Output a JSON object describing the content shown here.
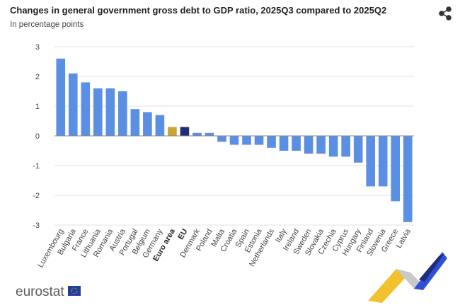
{
  "chart_data": {
    "type": "bar",
    "title": "Changes in general government gross debt to GDP ratio, 2025Q3 compared to 2025Q2",
    "subtitle": "In percentage points",
    "categories": [
      "Luxembourg",
      "Bulgaria",
      "France",
      "Lithuania",
      "Romania",
      "Austria",
      "Portugal",
      "Belgium",
      "Germany",
      "Euro area",
      "EU",
      "Denmark",
      "Poland",
      "Malta",
      "Croatia",
      "Spain",
      "Estonia",
      "Netherlands",
      "Italy",
      "Ireland",
      "Sweden",
      "Slovakia",
      "Czechia",
      "Cyprus",
      "Hungary",
      "Finland",
      "Slovenia",
      "Greece",
      "Latvia"
    ],
    "values": [
      2.6,
      2.1,
      1.8,
      1.6,
      1.6,
      1.5,
      0.9,
      0.8,
      0.7,
      0.3,
      0.3,
      0.1,
      0.1,
      -0.2,
      -0.3,
      -0.3,
      -0.3,
      -0.4,
      -0.5,
      -0.5,
      -0.6,
      -0.6,
      -0.7,
      -0.7,
      -0.9,
      -1.7,
      -1.7,
      -2.2,
      -2.9
    ],
    "color": "#5b8fe3",
    "colors": [
      "#5b8fe3",
      "#5b8fe3",
      "#5b8fe3",
      "#5b8fe3",
      "#5b8fe3",
      "#5b8fe3",
      "#5b8fe3",
      "#5b8fe3",
      "#5b8fe3",
      "#c9a532",
      "#1e2d78",
      "#5b8fe3",
      "#5b8fe3",
      "#5b8fe3",
      "#5b8fe3",
      "#5b8fe3",
      "#5b8fe3",
      "#5b8fe3",
      "#5b8fe3",
      "#5b8fe3",
      "#5b8fe3",
      "#5b8fe3",
      "#5b8fe3",
      "#5b8fe3",
      "#5b8fe3",
      "#5b8fe3",
      "#5b8fe3",
      "#5b8fe3",
      "#5b8fe3"
    ],
    "ylim": [
      -3,
      3
    ],
    "yticks": [
      -3,
      -2,
      -1,
      0,
      1,
      2,
      3
    ],
    "grid": true
  },
  "logo": "eurostat"
}
